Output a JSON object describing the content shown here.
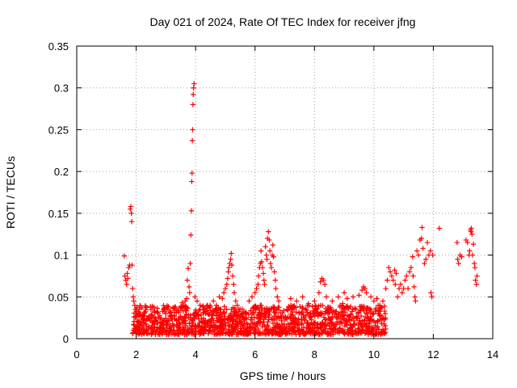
{
  "chart_data": {
    "type": "scatter",
    "title": "Day 021 of 2024, Rate Of TEC Index for receiver jfng",
    "xlabel": "GPS time / hours",
    "ylabel": "ROTI / TECUs",
    "xlim": [
      0,
      14
    ],
    "ylim": [
      0,
      0.35
    ],
    "xticks": [
      0,
      2,
      4,
      6,
      8,
      10,
      12,
      14
    ],
    "xtick_labels": [
      "0",
      "2",
      "4",
      "6",
      "8",
      "10",
      "12",
      "14"
    ],
    "yticks": [
      0,
      0.05,
      0.1,
      0.15,
      0.2,
      0.25,
      0.3,
      0.35
    ],
    "ytick_labels": [
      "0",
      "0.05",
      "0.1",
      "0.15",
      "0.2",
      "0.25",
      "0.3",
      "0.35"
    ],
    "grid": true,
    "marker": "+",
    "color": "#ff0000",
    "series": [
      {
        "name": "ROTI",
        "points": [
          [
            1.6,
            0.099
          ],
          [
            1.62,
            0.075
          ],
          [
            1.65,
            0.07
          ],
          [
            1.68,
            0.065
          ],
          [
            1.7,
            0.078
          ],
          [
            1.72,
            0.072
          ],
          [
            1.75,
            0.085
          ],
          [
            1.78,
            0.088
          ],
          [
            1.8,
            0.155
          ],
          [
            1.82,
            0.158
          ],
          [
            1.84,
            0.15
          ],
          [
            1.85,
            0.14
          ],
          [
            1.86,
            0.088
          ],
          [
            1.88,
            0.06
          ],
          [
            1.9,
            0.05
          ],
          [
            1.92,
            0.045
          ],
          [
            1.95,
            0.04
          ],
          [
            1.98,
            0.035
          ],
          [
            3.55,
            0.043
          ],
          [
            3.6,
            0.04
          ],
          [
            3.65,
            0.045
          ],
          [
            3.7,
            0.048
          ],
          [
            3.72,
            0.07
          ],
          [
            3.75,
            0.084
          ],
          [
            3.78,
            0.062
          ],
          [
            3.8,
            0.055
          ],
          [
            3.82,
            0.09
          ],
          [
            3.84,
            0.124
          ],
          [
            3.86,
            0.153
          ],
          [
            3.87,
            0.188
          ],
          [
            3.88,
            0.198
          ],
          [
            3.89,
            0.237
          ],
          [
            3.9,
            0.25
          ],
          [
            3.91,
            0.28
          ],
          [
            3.92,
            0.292
          ],
          [
            3.93,
            0.3
          ],
          [
            3.95,
            0.305
          ],
          [
            3.98,
            0.05
          ],
          [
            4.05,
            0.045
          ],
          [
            4.15,
            0.04
          ],
          [
            4.25,
            0.035
          ],
          [
            4.4,
            0.04
          ],
          [
            4.5,
            0.038
          ],
          [
            4.6,
            0.045
          ],
          [
            4.7,
            0.04
          ],
          [
            4.8,
            0.05
          ],
          [
            4.85,
            0.035
          ],
          [
            4.9,
            0.048
          ],
          [
            4.95,
            0.055
          ],
          [
            5.0,
            0.06
          ],
          [
            5.05,
            0.065
          ],
          [
            5.08,
            0.072
          ],
          [
            5.1,
            0.08
          ],
          [
            5.12,
            0.085
          ],
          [
            5.15,
            0.09
          ],
          [
            5.18,
            0.095
          ],
          [
            5.2,
            0.102
          ],
          [
            5.22,
            0.088
          ],
          [
            5.25,
            0.075
          ],
          [
            5.28,
            0.065
          ],
          [
            5.3,
            0.055
          ],
          [
            5.35,
            0.045
          ],
          [
            5.4,
            0.04
          ],
          [
            5.45,
            0.035
          ],
          [
            5.8,
            0.045
          ],
          [
            5.9,
            0.05
          ],
          [
            6.0,
            0.055
          ],
          [
            6.05,
            0.06
          ],
          [
            6.1,
            0.065
          ],
          [
            6.12,
            0.075
          ],
          [
            6.15,
            0.085
          ],
          [
            6.18,
            0.09
          ],
          [
            6.2,
            0.105
          ],
          [
            6.22,
            0.092
          ],
          [
            6.25,
            0.085
          ],
          [
            6.28,
            0.078
          ],
          [
            6.3,
            0.07
          ],
          [
            6.32,
            0.065
          ],
          [
            6.35,
            0.11
          ],
          [
            6.38,
            0.1
          ],
          [
            6.4,
            0.095
          ],
          [
            6.42,
            0.12
          ],
          [
            6.45,
            0.128
          ],
          [
            6.48,
            0.118
          ],
          [
            6.5,
            0.105
          ],
          [
            6.52,
            0.09
          ],
          [
            6.55,
            0.085
          ],
          [
            6.58,
            0.1
          ],
          [
            6.6,
            0.112
          ],
          [
            6.62,
            0.098
          ],
          [
            6.65,
            0.08
          ],
          [
            6.68,
            0.07
          ],
          [
            6.7,
            0.06
          ],
          [
            6.75,
            0.05
          ],
          [
            6.8,
            0.045
          ],
          [
            7.2,
            0.048
          ],
          [
            7.4,
            0.045
          ],
          [
            7.6,
            0.05
          ],
          [
            7.8,
            0.042
          ],
          [
            8.0,
            0.045
          ],
          [
            8.15,
            0.055
          ],
          [
            8.2,
            0.068
          ],
          [
            8.25,
            0.072
          ],
          [
            8.3,
            0.07
          ],
          [
            8.35,
            0.065
          ],
          [
            8.4,
            0.05
          ],
          [
            8.6,
            0.045
          ],
          [
            8.8,
            0.05
          ],
          [
            8.95,
            0.042
          ],
          [
            9.0,
            0.055
          ],
          [
            9.1,
            0.048
          ],
          [
            9.3,
            0.05
          ],
          [
            9.5,
            0.052
          ],
          [
            9.6,
            0.058
          ],
          [
            9.65,
            0.062
          ],
          [
            9.7,
            0.06
          ],
          [
            9.75,
            0.055
          ],
          [
            9.9,
            0.05
          ],
          [
            10.0,
            0.045
          ],
          [
            10.1,
            0.048
          ],
          [
            10.2,
            0.04
          ],
          [
            10.3,
            0.045
          ],
          [
            10.38,
            0.03
          ],
          [
            10.4,
            0.06
          ],
          [
            10.45,
            0.07
          ],
          [
            10.5,
            0.085
          ],
          [
            10.55,
            0.08
          ],
          [
            10.6,
            0.075
          ],
          [
            10.65,
            0.07
          ],
          [
            10.7,
            0.082
          ],
          [
            10.72,
            0.065
          ],
          [
            10.75,
            0.078
          ],
          [
            10.8,
            0.05
          ],
          [
            10.85,
            0.06
          ],
          [
            10.9,
            0.065
          ],
          [
            10.95,
            0.055
          ],
          [
            11.0,
            0.06
          ],
          [
            11.05,
            0.07
          ],
          [
            11.1,
            0.075
          ],
          [
            11.15,
            0.06
          ],
          [
            11.2,
            0.08
          ],
          [
            11.25,
            0.085
          ],
          [
            11.3,
            0.098
          ],
          [
            11.32,
            0.075
          ],
          [
            11.35,
            0.062
          ],
          [
            11.38,
            0.05
          ],
          [
            11.4,
            0.045
          ],
          [
            11.45,
            0.105
          ],
          [
            11.5,
            0.1
          ],
          [
            11.55,
            0.118
          ],
          [
            11.6,
            0.12
          ],
          [
            11.62,
            0.133
          ],
          [
            11.65,
            0.108
          ],
          [
            11.7,
            0.09
          ],
          [
            11.75,
            0.095
          ],
          [
            11.8,
            0.115
          ],
          [
            11.85,
            0.1
          ],
          [
            11.9,
            0.105
          ],
          [
            11.92,
            0.055
          ],
          [
            11.95,
            0.05
          ],
          [
            11.98,
            0.1
          ],
          [
            12.2,
            0.132
          ],
          [
            12.8,
            0.115
          ],
          [
            12.82,
            0.095
          ],
          [
            12.85,
            0.09
          ],
          [
            12.9,
            0.1
          ],
          [
            12.95,
            0.098
          ],
          [
            13.1,
            0.118
          ],
          [
            13.15,
            0.115
          ],
          [
            13.2,
            0.1
          ],
          [
            13.22,
            0.105
          ],
          [
            13.25,
            0.13
          ],
          [
            13.27,
            0.128
          ],
          [
            13.28,
            0.132
          ],
          [
            13.3,
            0.125
          ],
          [
            13.32,
            0.1
          ],
          [
            13.35,
            0.113
          ],
          [
            13.38,
            0.09
          ],
          [
            13.4,
            0.085
          ],
          [
            13.42,
            0.07
          ],
          [
            13.45,
            0.065
          ],
          [
            13.47,
            0.075
          ]
        ],
        "dense_band": {
          "x_range": [
            1.88,
            10.42
          ],
          "y_range": [
            0.005,
            0.04
          ],
          "count": 1400
        }
      }
    ]
  }
}
